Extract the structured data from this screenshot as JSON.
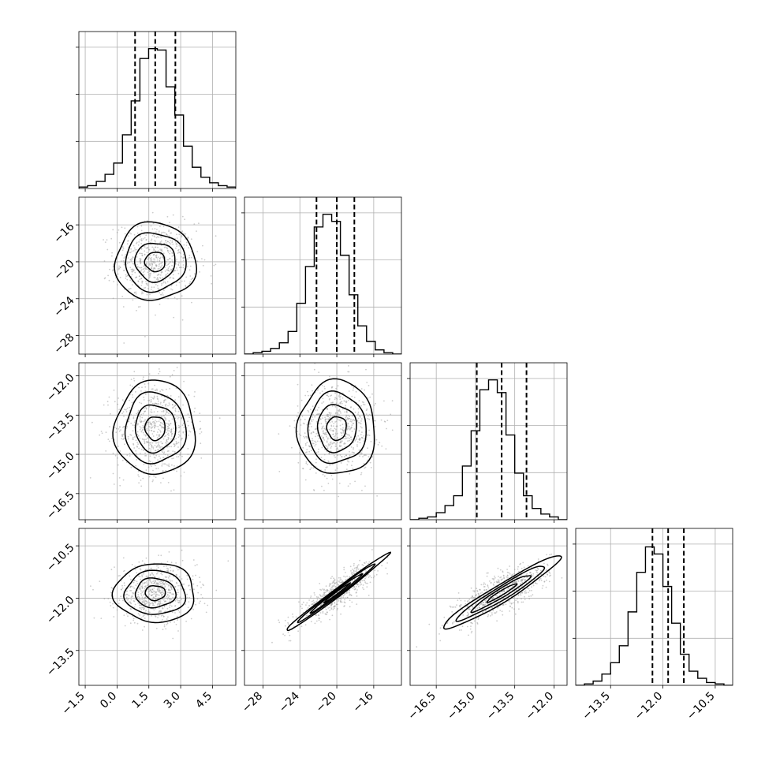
{
  "chart_data": {
    "type": "corner",
    "grid": true,
    "parameters": [
      {
        "ticks": [
          -1.5,
          0.0,
          1.5,
          3.0,
          4.5
        ],
        "tick_labels": [
          "−1.5",
          "0.0",
          "1.5",
          "3.0",
          "4.5"
        ],
        "range": [
          -1.8,
          5.6
        ],
        "mean": 1.8,
        "sd": 0.95,
        "quantiles": [
          0.85,
          1.8,
          2.75
        ],
        "hist": [
          1,
          2,
          5,
          10,
          18,
          38,
          62,
          92,
          99,
          98,
          72,
          52,
          30,
          15,
          8,
          4,
          2,
          1
        ],
        "hist_ymax": 100
      },
      {
        "ticks": [
          -28,
          -24,
          -20,
          -16
        ],
        "tick_labels": [
          "−28",
          "−24",
          "−20",
          "−16"
        ],
        "range": [
          -30,
          -13
        ],
        "mean": -20.0,
        "sd": 2.1,
        "quantiles": [
          -22.2,
          -20.0,
          -18.1
        ],
        "hist": [
          0,
          1,
          2,
          4,
          8,
          16,
          36,
          62,
          90,
          99,
          94,
          70,
          42,
          20,
          9,
          3,
          1,
          0
        ],
        "hist_ymax": 100
      },
      {
        "ticks": [
          -16.5,
          -15.0,
          -13.5,
          -12.0
        ],
        "tick_labels": [
          "−16.5",
          "−15.0",
          "−13.5",
          "−12.0"
        ],
        "range": [
          -17.5,
          -11.5
        ],
        "mean": -14.0,
        "sd": 0.9,
        "quantiles": [
          -14.95,
          -14.0,
          -13.05
        ],
        "hist": [
          0,
          1,
          2,
          5,
          10,
          17,
          38,
          63,
          92,
          99,
          90,
          60,
          33,
          17,
          8,
          4,
          2,
          0
        ],
        "hist_ymax": 100
      },
      {
        "ticks": [
          -13.5,
          -12.0,
          -10.5
        ],
        "tick_labels": [
          "−13.5",
          "−12.0",
          "−10.5"
        ],
        "range": [
          -14.5,
          -10.0
        ],
        "mean": -11.85,
        "sd": 0.42,
        "quantiles": [
          -12.3,
          -11.85,
          -11.4
        ],
        "hist": [
          0,
          1,
          3,
          8,
          16,
          28,
          52,
          80,
          98,
          93,
          70,
          44,
          22,
          10,
          5,
          2,
          1,
          0
        ],
        "hist_ymax": 100
      }
    ],
    "correlations": {
      "1-0": 0.0,
      "2-0": 0.0,
      "2-1": 0.0,
      "3-0": 0.0,
      "3-1": 0.88,
      "3-2": 0.75
    },
    "contour_levels_sigma": [
      0.5,
      1.0,
      1.5,
      2.0
    ],
    "colors": {
      "line": "#000000",
      "grid": "#b0b0b0",
      "points": "#9a9a9a",
      "quantile_line": "#000000"
    }
  }
}
